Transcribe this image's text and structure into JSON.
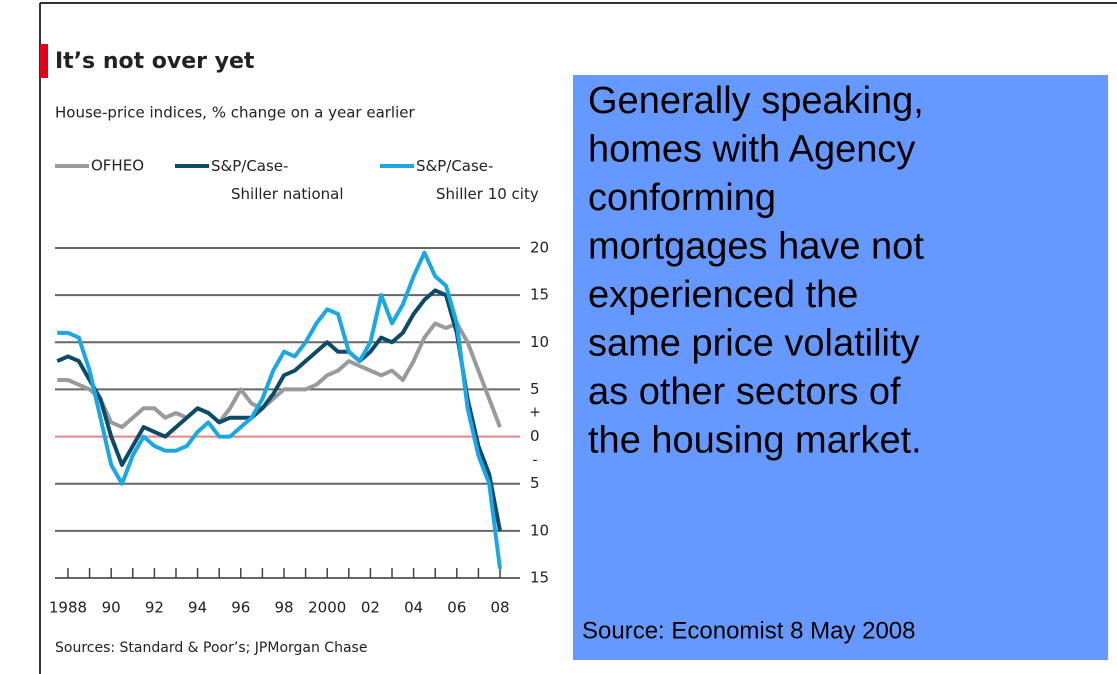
{
  "chart_data": {
    "type": "line",
    "title": "It’s not over yet",
    "subtitle": "House-price indices, % change on a year earlier",
    "source": "Sources: Standard & Poor’s; JPMorgan Chase",
    "sign_labels": [
      "+",
      "-"
    ],
    "x": [
      1987.5,
      1988,
      1988.5,
      1989,
      1989.5,
      1990,
      1990.5,
      1991,
      1991.5,
      1992,
      1992.5,
      1993,
      1993.5,
      1994,
      1994.5,
      1995,
      1995.5,
      1996,
      1996.5,
      1997,
      1997.5,
      1998,
      1998.5,
      1999,
      1999.5,
      2000,
      2000.5,
      2001,
      2001.5,
      2002,
      2002.5,
      2003,
      2003.5,
      2004,
      2004.5,
      2005,
      2005.5,
      2006,
      2006.5,
      2007,
      2007.5,
      2008
    ],
    "series": [
      {
        "name": "OFHEO",
        "color": "#9a9a9a",
        "values": [
          6,
          6,
          5.5,
          5,
          4,
          1.5,
          1,
          2,
          3,
          3,
          2,
          2.5,
          2,
          3,
          2.5,
          1.5,
          3,
          5,
          3.5,
          3,
          4,
          5,
          5,
          5,
          5.5,
          6.5,
          7,
          8,
          7.5,
          7,
          6.5,
          7,
          6,
          8,
          10.5,
          12,
          11.5,
          12,
          10,
          7,
          4,
          1
        ]
      },
      {
        "name": "S&P/Case-Shiller national",
        "color": "#0d4a68",
        "values": [
          8,
          8.5,
          8,
          6,
          4,
          0,
          -3,
          -1,
          1,
          0.5,
          0,
          1,
          2,
          3,
          2.5,
          1.5,
          2,
          2,
          2,
          3,
          4.5,
          6.5,
          7,
          8,
          9,
          10,
          9,
          9,
          8,
          9,
          10.5,
          10,
          11,
          13,
          14.5,
          15.5,
          15,
          11,
          4,
          -1,
          -4,
          -10
        ]
      },
      {
        "name": "S&P/Case-Shiller 10 city",
        "color": "#1ba8e2",
        "values": [
          11,
          11,
          10.5,
          7,
          2,
          -3,
          -5,
          -2,
          0,
          -1,
          -1.5,
          -1.5,
          -1,
          0.5,
          1.5,
          0,
          0,
          1,
          2,
          4,
          7,
          9,
          8.5,
          10,
          12,
          13.5,
          13,
          9,
          8,
          10,
          15,
          12,
          14,
          17,
          19.5,
          17,
          16,
          12,
          3,
          -2,
          -5,
          -14
        ]
      }
    ],
    "xlim": [
      1987.4,
      2008.6
    ],
    "xticks": [
      {
        "value": 1988,
        "label": "1988"
      },
      {
        "value": 1990,
        "label": "90"
      },
      {
        "value": 1992,
        "label": "92"
      },
      {
        "value": 1994,
        "label": "94"
      },
      {
        "value": 1996,
        "label": "96"
      },
      {
        "value": 1998,
        "label": "98"
      },
      2000,
      {
        "value": 2002,
        "label": "02"
      },
      {
        "value": 2004,
        "label": "04"
      },
      {
        "value": 2006,
        "label": "06"
      },
      {
        "value": 2008,
        "label": "08"
      }
    ],
    "ylim": [
      -15,
      20
    ],
    "yticks": [
      20,
      15,
      10,
      5,
      0,
      {
        "value": -5,
        "label": "5"
      },
      {
        "value": -10,
        "label": "10"
      },
      {
        "value": -15,
        "label": "15"
      }
    ],
    "grid": true,
    "zero_line_color": "#f08080",
    "text_box": {
      "lines": [
        "Generally speaking,",
        "homes with Agency",
        "conforming",
        "mortgages have not",
        "experienced the",
        "same price volatility",
        "as other sectors of",
        "the housing market."
      ],
      "source": "Source: Economist 8 May 2008",
      "color": "#6699ff"
    }
  }
}
